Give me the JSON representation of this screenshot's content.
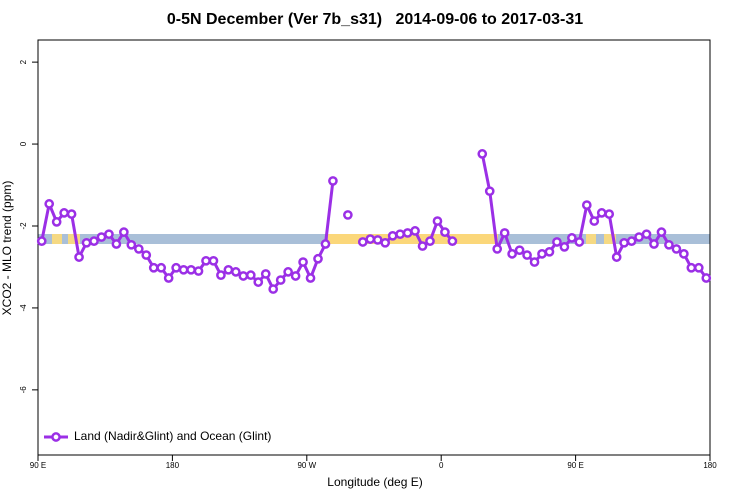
{
  "chart_data": {
    "type": "line",
    "title": "0-5N December (Ver 7b_s31)   2014-09-06 to 2017-03-31",
    "x_label": "Longitude (deg E)",
    "y_label": "XCO2 - MLO trend (ppm)",
    "xlim": [
      90,
      540
    ],
    "xticks": [
      {
        "value": 90,
        "label": "90 E"
      },
      180,
      {
        "value": 270,
        "label": "90 W"
      },
      {
        "value": 360,
        "label": "0"
      },
      {
        "value": 450,
        "label": "90 E"
      },
      {
        "value": 540,
        "label": "180"
      }
    ],
    "ylim": [
      -7.59,
      2.54
    ],
    "yticks": [
      2,
      0,
      -2,
      -4,
      -6
    ],
    "legend": "bottom-left",
    "x": [
      92.5,
      97.5,
      102.5,
      107.5,
      112.5,
      117.5,
      122.5,
      127.5,
      132.5,
      137.5,
      142.5,
      147.5,
      152.5,
      157.5,
      162.5,
      167.5,
      172.5,
      177.5,
      182.5,
      187.5,
      192.5,
      197.5,
      202.5,
      207.5,
      212.5,
      217.5,
      222.5,
      227.5,
      232.5,
      237.5,
      242.5,
      247.5,
      252.5,
      257.5,
      262.5,
      267.5,
      272.5,
      277.5,
      282.5,
      287.5,
      292.5,
      297.5,
      302.5,
      307.5,
      312.5,
      317.5,
      322.5,
      327.5,
      332.5,
      337.5,
      342.5,
      347.5,
      352.5,
      357.5,
      362.5,
      367.5,
      372.5,
      377.5,
      382.5,
      387.5,
      392.5,
      397.5,
      402.5,
      407.5,
      412.5,
      417.5,
      422.5,
      427.5,
      432.5,
      437.5,
      442.5,
      447.5,
      452.5,
      457.5,
      462.5,
      467.5,
      472.5,
      477.5,
      482.5,
      487.5,
      492.5,
      497.5,
      502.5,
      507.5,
      512.5,
      517.5,
      522.5,
      527.5,
      532.5,
      537.5
    ],
    "series": [
      {
        "name": "Land (Nadir&Glint) and Ocean (Glint)",
        "color": "#9b2fe6",
        "values": [
          -2.37,
          -1.46,
          -1.9,
          -1.68,
          -1.71,
          -2.76,
          -2.41,
          -2.37,
          -2.27,
          -2.2,
          -2.44,
          -2.15,
          -2.46,
          -2.56,
          -2.71,
          -3.02,
          -3.02,
          -3.27,
          -3.02,
          -3.07,
          -3.07,
          -3.1,
          -2.85,
          -2.85,
          -3.2,
          -3.07,
          -3.12,
          -3.22,
          -3.2,
          -3.37,
          -3.17,
          -3.54,
          -3.32,
          -3.12,
          -3.22,
          -2.88,
          -3.27,
          -2.8,
          -2.44,
          -0.9,
          null,
          -1.73,
          null,
          -2.39,
          -2.32,
          -2.34,
          -2.41,
          -2.24,
          -2.2,
          -2.17,
          -2.12,
          -2.49,
          -2.37,
          -1.88,
          -2.15,
          -2.37,
          null,
          null,
          null,
          -0.24,
          -1.15,
          -2.56,
          -2.17,
          -2.68,
          -2.59,
          -2.71,
          -2.88,
          -2.68,
          -2.63,
          -2.39,
          -2.51,
          -2.29,
          -2.39,
          -1.49,
          -1.88,
          -1.68,
          -1.71,
          -2.76,
          -2.41,
          -2.37,
          -2.27,
          -2.2,
          -2.44,
          -2.15,
          -2.46,
          -2.56,
          -2.68,
          -3.02,
          -3.02,
          -3.27
        ]
      }
    ]
  }
}
